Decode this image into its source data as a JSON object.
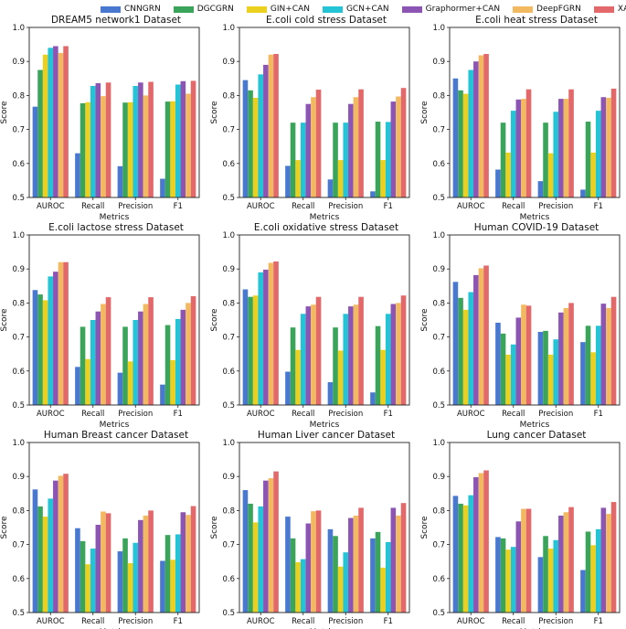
{
  "legend": [
    {
      "name": "CNNGRN",
      "color": "#4878d0"
    },
    {
      "name": "DGCGRN",
      "color": "#3aa45a"
    },
    {
      "name": "GIN+CAN",
      "color": "#ecd01f"
    },
    {
      "name": "GCN+CAN",
      "color": "#22c4d6"
    },
    {
      "name": "Graphormer+CAN",
      "color": "#8c55b4"
    },
    {
      "name": "DeepFGRN",
      "color": "#f3b960"
    },
    {
      "name": "XATGRN",
      "color": "#e2686a"
    }
  ],
  "chart_data": [
    {
      "type": "bar",
      "title": "DREAM5 network1 Dataset",
      "xlabel": "Metrics",
      "ylabel": "Score",
      "categories": [
        "AUROC",
        "Recall",
        "Precision",
        "F1"
      ],
      "ylim": [
        0.5,
        1.0
      ],
      "yticks": [
        "0.5",
        "0.6",
        "0.7",
        "0.8",
        "0.9",
        "1.0"
      ],
      "series": [
        {
          "name": "CNNGRN",
          "values": [
            0.767,
            0.63,
            0.592,
            0.555
          ]
        },
        {
          "name": "DGCGRN",
          "values": [
            0.875,
            0.777,
            0.779,
            0.782
          ]
        },
        {
          "name": "GIN+CAN",
          "values": [
            0.92,
            0.78,
            0.78,
            0.783
          ]
        },
        {
          "name": "GCN+CAN",
          "values": [
            0.94,
            0.828,
            0.828,
            0.832
          ]
        },
        {
          "name": "Graphormer+CAN",
          "values": [
            0.945,
            0.836,
            0.838,
            0.842
          ]
        },
        {
          "name": "DeepFGRN",
          "values": [
            0.925,
            0.798,
            0.8,
            0.805
          ]
        },
        {
          "name": "XATGRN",
          "values": [
            0.945,
            0.838,
            0.84,
            0.843
          ]
        }
      ]
    },
    {
      "type": "bar",
      "title": "E.coli cold stress Dataset",
      "xlabel": "Metrics",
      "ylabel": "Score",
      "categories": [
        "AUROC",
        "Recall",
        "Precision",
        "F1"
      ],
      "ylim": [
        0.5,
        1.0
      ],
      "yticks": [
        "0.5",
        "0.6",
        "0.7",
        "0.8",
        "0.9",
        "1.0"
      ],
      "series": [
        {
          "name": "CNNGRN",
          "values": [
            0.845,
            0.593,
            0.553,
            0.518
          ]
        },
        {
          "name": "DGCGRN",
          "values": [
            0.815,
            0.72,
            0.72,
            0.723
          ]
        },
        {
          "name": "GIN+CAN",
          "values": [
            0.793,
            0.61,
            0.61,
            0.61
          ]
        },
        {
          "name": "GCN+CAN",
          "values": [
            0.862,
            0.72,
            0.72,
            0.722
          ]
        },
        {
          "name": "Graphormer+CAN",
          "values": [
            0.89,
            0.775,
            0.775,
            0.782
          ]
        },
        {
          "name": "DeepFGRN",
          "values": [
            0.92,
            0.795,
            0.795,
            0.797
          ]
        },
        {
          "name": "XATGRN",
          "values": [
            0.922,
            0.817,
            0.818,
            0.822
          ]
        }
      ]
    },
    {
      "type": "bar",
      "title": "E.coli heat stress Dataset",
      "xlabel": "Metrics",
      "ylabel": "Score",
      "categories": [
        "AUROC",
        "Recall",
        "Precision",
        "F1"
      ],
      "ylim": [
        0.5,
        1.0
      ],
      "yticks": [
        "0.5",
        "0.6",
        "0.7",
        "0.8",
        "0.9",
        "1.0"
      ],
      "series": [
        {
          "name": "CNNGRN",
          "values": [
            0.85,
            0.582,
            0.548,
            0.523
          ]
        },
        {
          "name": "DGCGRN",
          "values": [
            0.815,
            0.72,
            0.72,
            0.723
          ]
        },
        {
          "name": "GIN+CAN",
          "values": [
            0.805,
            0.632,
            0.63,
            0.632
          ]
        },
        {
          "name": "GCN+CAN",
          "values": [
            0.875,
            0.755,
            0.752,
            0.755
          ]
        },
        {
          "name": "Graphormer+CAN",
          "values": [
            0.9,
            0.788,
            0.79,
            0.795
          ]
        },
        {
          "name": "DeepFGRN",
          "values": [
            0.918,
            0.79,
            0.79,
            0.793
          ]
        },
        {
          "name": "XATGRN",
          "values": [
            0.922,
            0.818,
            0.818,
            0.82
          ]
        }
      ]
    },
    {
      "type": "bar",
      "title": "E.coli lactose stress Dataset",
      "xlabel": "Metrics",
      "ylabel": "Score",
      "categories": [
        "AUROC",
        "Recall",
        "Precision",
        "F1"
      ],
      "ylim": [
        0.5,
        1.0
      ],
      "yticks": [
        "0.5",
        "0.6",
        "0.7",
        "0.8",
        "0.9",
        "1.0"
      ],
      "series": [
        {
          "name": "CNNGRN",
          "values": [
            0.838,
            0.612,
            0.595,
            0.56
          ]
        },
        {
          "name": "DGCGRN",
          "values": [
            0.825,
            0.73,
            0.73,
            0.735
          ]
        },
        {
          "name": "GIN+CAN",
          "values": [
            0.808,
            0.635,
            0.628,
            0.632
          ]
        },
        {
          "name": "GCN+CAN",
          "values": [
            0.878,
            0.75,
            0.75,
            0.753
          ]
        },
        {
          "name": "Graphormer+CAN",
          "values": [
            0.892,
            0.775,
            0.775,
            0.78
          ]
        },
        {
          "name": "DeepFGRN",
          "values": [
            0.92,
            0.797,
            0.797,
            0.8
          ]
        },
        {
          "name": "XATGRN",
          "values": [
            0.92,
            0.817,
            0.817,
            0.82
          ]
        }
      ]
    },
    {
      "type": "bar",
      "title": "E.coli oxidative stress Dataset",
      "xlabel": "Metrics",
      "ylabel": "Score",
      "categories": [
        "AUROC",
        "Recall",
        "Precision",
        "F1"
      ],
      "ylim": [
        0.5,
        1.0
      ],
      "yticks": [
        "0.5",
        "0.6",
        "0.7",
        "0.8",
        "0.9",
        "1.0"
      ],
      "series": [
        {
          "name": "CNNGRN",
          "values": [
            0.84,
            0.598,
            0.567,
            0.537
          ]
        },
        {
          "name": "DGCGRN",
          "values": [
            0.818,
            0.728,
            0.728,
            0.732
          ]
        },
        {
          "name": "GIN+CAN",
          "values": [
            0.822,
            0.662,
            0.66,
            0.662
          ]
        },
        {
          "name": "GCN+CAN",
          "values": [
            0.89,
            0.768,
            0.768,
            0.768
          ]
        },
        {
          "name": "Graphormer+CAN",
          "values": [
            0.898,
            0.79,
            0.79,
            0.797
          ]
        },
        {
          "name": "DeepFGRN",
          "values": [
            0.918,
            0.795,
            0.795,
            0.8
          ]
        },
        {
          "name": "XATGRN",
          "values": [
            0.922,
            0.818,
            0.818,
            0.822
          ]
        }
      ]
    },
    {
      "type": "bar",
      "title": "Human COVID-19 Dataset",
      "xlabel": "Metrics",
      "ylabel": "Score",
      "categories": [
        "AUROC",
        "Recall",
        "Precision",
        "F1"
      ],
      "ylim": [
        0.5,
        1.0
      ],
      "yticks": [
        "0.5",
        "0.6",
        "0.7",
        "0.8",
        "0.9",
        "1.0"
      ],
      "series": [
        {
          "name": "CNNGRN",
          "values": [
            0.862,
            0.742,
            0.715,
            0.685
          ]
        },
        {
          "name": "DGCGRN",
          "values": [
            0.815,
            0.71,
            0.718,
            0.733
          ]
        },
        {
          "name": "GIN+CAN",
          "values": [
            0.78,
            0.648,
            0.648,
            0.655
          ]
        },
        {
          "name": "GCN+CAN",
          "values": [
            0.832,
            0.678,
            0.693,
            0.733
          ]
        },
        {
          "name": "Graphormer+CAN",
          "values": [
            0.882,
            0.757,
            0.772,
            0.798
          ]
        },
        {
          "name": "DeepFGRN",
          "values": [
            0.902,
            0.795,
            0.785,
            0.785
          ]
        },
        {
          "name": "XATGRN",
          "values": [
            0.91,
            0.792,
            0.8,
            0.818
          ]
        }
      ]
    },
    {
      "type": "bar",
      "title": "Human Breast cancer Dataset",
      "xlabel": "Metrics",
      "ylabel": "Score",
      "categories": [
        "AUROC",
        "Recall",
        "Precision",
        "F1"
      ],
      "ylim": [
        0.5,
        1.0
      ],
      "yticks": [
        "0.5",
        "0.6",
        "0.7",
        "0.8",
        "0.9",
        "1.0"
      ],
      "series": [
        {
          "name": "CNNGRN",
          "values": [
            0.862,
            0.748,
            0.68,
            0.652
          ]
        },
        {
          "name": "DGCGRN",
          "values": [
            0.812,
            0.71,
            0.718,
            0.728
          ]
        },
        {
          "name": "GIN+CAN",
          "values": [
            0.782,
            0.642,
            0.645,
            0.655
          ]
        },
        {
          "name": "GCN+CAN",
          "values": [
            0.835,
            0.688,
            0.705,
            0.73
          ]
        },
        {
          "name": "Graphormer+CAN",
          "values": [
            0.888,
            0.758,
            0.772,
            0.795
          ]
        },
        {
          "name": "DeepFGRN",
          "values": [
            0.902,
            0.797,
            0.785,
            0.787
          ]
        },
        {
          "name": "XATGRN",
          "values": [
            0.908,
            0.792,
            0.8,
            0.813
          ]
        }
      ]
    },
    {
      "type": "bar",
      "title": "Human Liver cancer Dataset",
      "xlabel": "Metrics",
      "ylabel": "Score",
      "categories": [
        "AUROC",
        "Recall",
        "Precision",
        "F1"
      ],
      "ylim": [
        0.5,
        1.0
      ],
      "yticks": [
        "0.5",
        "0.6",
        "0.7",
        "0.8",
        "0.9",
        "1.0"
      ],
      "series": [
        {
          "name": "CNNGRN",
          "values": [
            0.86,
            0.782,
            0.745,
            0.718
          ]
        },
        {
          "name": "DGCGRN",
          "values": [
            0.82,
            0.718,
            0.725,
            0.737
          ]
        },
        {
          "name": "GIN+CAN",
          "values": [
            0.765,
            0.648,
            0.635,
            0.632
          ]
        },
        {
          "name": "GCN+CAN",
          "values": [
            0.812,
            0.657,
            0.677,
            0.707
          ]
        },
        {
          "name": "Graphormer+CAN",
          "values": [
            0.888,
            0.762,
            0.778,
            0.808
          ]
        },
        {
          "name": "DeepFGRN",
          "values": [
            0.895,
            0.798,
            0.785,
            0.785
          ]
        },
        {
          "name": "XATGRN",
          "values": [
            0.915,
            0.8,
            0.808,
            0.822
          ]
        }
      ]
    },
    {
      "type": "bar",
      "title": "Lung cancer Dataset",
      "xlabel": "Metrics",
      "ylabel": "Score",
      "categories": [
        "AUROC",
        "Recall",
        "Precision",
        "F1"
      ],
      "ylim": [
        0.5,
        1.0
      ],
      "yticks": [
        "0.5",
        "0.6",
        "0.7",
        "0.8",
        "0.9",
        "1.0"
      ],
      "series": [
        {
          "name": "CNNGRN",
          "values": [
            0.843,
            0.722,
            0.663,
            0.625
          ]
        },
        {
          "name": "DGCGRN",
          "values": [
            0.82,
            0.718,
            0.725,
            0.738
          ]
        },
        {
          "name": "GIN+CAN",
          "values": [
            0.815,
            0.685,
            0.688,
            0.698
          ]
        },
        {
          "name": "GCN+CAN",
          "values": [
            0.845,
            0.693,
            0.713,
            0.745
          ]
        },
        {
          "name": "Graphormer+CAN",
          "values": [
            0.898,
            0.768,
            0.785,
            0.808
          ]
        },
        {
          "name": "DeepFGRN",
          "values": [
            0.91,
            0.805,
            0.795,
            0.79
          ]
        },
        {
          "name": "XATGRN",
          "values": [
            0.918,
            0.805,
            0.81,
            0.825
          ]
        }
      ]
    }
  ]
}
